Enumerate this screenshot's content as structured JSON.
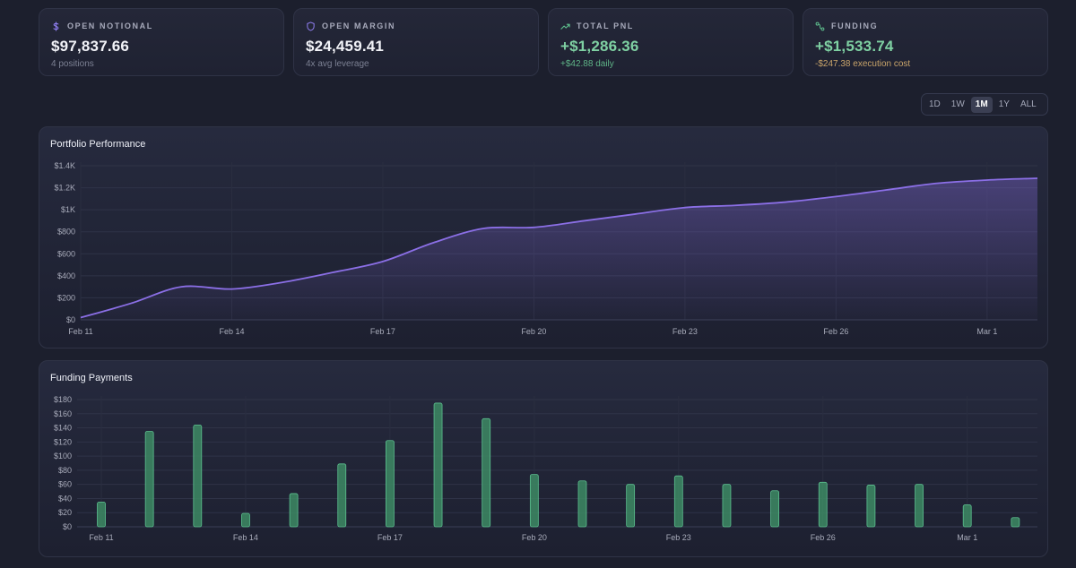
{
  "stats": [
    {
      "label": "OPEN NOTIONAL",
      "icon": "dollar-icon",
      "value": "$97,837.66",
      "sub": "4 positions",
      "tone": "neutral"
    },
    {
      "label": "OPEN MARGIN",
      "icon": "shield-icon",
      "value": "$24,459.41",
      "sub": "4x avg leverage",
      "tone": "neutral"
    },
    {
      "label": "TOTAL PNL",
      "icon": "trending-up-icon",
      "value": "+$1,286.36",
      "sub": "+$42.88 daily",
      "tone": "positive"
    },
    {
      "label": "FUNDING",
      "icon": "route-icon",
      "value": "+$1,533.74",
      "sub": "-$247.38 execution cost",
      "tone": "mixed"
    }
  ],
  "range": {
    "options": [
      "1D",
      "1W",
      "1M",
      "1Y",
      "ALL"
    ],
    "selected": "1M"
  },
  "colors": {
    "line": "#8b6fe6",
    "bar": "#3d8a64",
    "bar_edge": "#5cc08f",
    "accent_icon": "#8f7ef0"
  },
  "chart_data": [
    {
      "type": "area",
      "title": "Portfolio Performance",
      "categories": [
        "Feb 11",
        "Feb 12",
        "Feb 13",
        "Feb 14",
        "Feb 15",
        "Feb 16",
        "Feb 17",
        "Feb 18",
        "Feb 19",
        "Feb 20",
        "Feb 21",
        "Feb 22",
        "Feb 23",
        "Feb 24",
        "Feb 25",
        "Feb 26",
        "Feb 27",
        "Feb 28",
        "Mar 1",
        "Mar 2"
      ],
      "x_tick_labels": [
        "Feb 11",
        "Feb 14",
        "Feb 17",
        "Feb 20",
        "Feb 23",
        "Feb 26",
        "Mar 1"
      ],
      "values": [
        20,
        150,
        300,
        280,
        340,
        430,
        530,
        700,
        830,
        840,
        900,
        960,
        1020,
        1040,
        1070,
        1120,
        1180,
        1240,
        1270,
        1286
      ],
      "y_ticks": [
        "$0",
        "$200",
        "$400",
        "$600",
        "$800",
        "$1K",
        "$1.2K",
        "$1.4K"
      ],
      "ylim": [
        0,
        1400
      ],
      "grid": true
    },
    {
      "type": "bar",
      "title": "Funding Payments",
      "categories": [
        "Feb 11",
        "Feb 12",
        "Feb 13",
        "Feb 14",
        "Feb 15",
        "Feb 16",
        "Feb 17",
        "Feb 18",
        "Feb 19",
        "Feb 20",
        "Feb 21",
        "Feb 22",
        "Feb 23",
        "Feb 24",
        "Feb 25",
        "Feb 26",
        "Feb 27",
        "Feb 28",
        "Mar 1",
        "Mar 2"
      ],
      "x_tick_labels": [
        "Feb 11",
        "Feb 14",
        "Feb 17",
        "Feb 20",
        "Feb 23",
        "Feb 26",
        "Mar 1"
      ],
      "values": [
        35,
        135,
        144,
        19,
        47,
        89,
        122,
        175,
        153,
        74,
        65,
        60,
        72,
        60,
        51,
        63,
        59,
        60,
        31,
        13
      ],
      "y_ticks": [
        "$0",
        "$20",
        "$40",
        "$60",
        "$80",
        "$100",
        "$120",
        "$140",
        "$160",
        "$180"
      ],
      "ylim": [
        0,
        180
      ],
      "grid": true
    }
  ]
}
